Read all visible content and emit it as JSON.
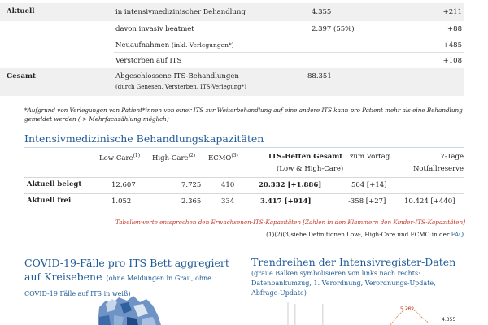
{
  "top_table": {
    "rows": [
      {
        "label": "Aktuell",
        "desc": "in intensivmedizinischer Behandlung",
        "value": "4.355",
        "change": "+211"
      },
      {
        "label": "",
        "desc": "davon invasiv beatmet",
        "value": "2.397  (55%)",
        "change": "+88"
      },
      {
        "label": "",
        "desc": "Neuaufnahmen",
        "desc_small": "(inkl. Verlegungen*)",
        "value": "",
        "change": "+485"
      },
      {
        "label": "",
        "desc": "Verstorben auf ITS",
        "value": "",
        "change": "+108"
      },
      {
        "label": "Gesamt",
        "desc": "Abgeschlossene ITS-Behandlungen",
        "desc_line2": "(durch Genesen, Versterben, ITS-Verlegung*)",
        "value": "88.351",
        "change": ""
      }
    ]
  },
  "footnote": "*Aufgrund von Verlegungen von Patient*innen von einer ITS zur Weiterbehandlung auf eine andere ITS kann pro Patient mehr als eine Behandlung gemeldet werden (-> Mehrfachzählung möglich)",
  "capacity": {
    "title": "Intensivmedizinische Behandlungskapazitäten",
    "headers": {
      "low": "Low-Care",
      "low_sup": "(1)",
      "high": "High-Care",
      "high_sup": "(2)",
      "ecmo": "ECMO",
      "ecmo_sup": "(3)",
      "its": "ITS-Betten Gesamt",
      "its_sub": "(Low & High-Care)",
      "vortag": "zum Vortag",
      "reserve": "7-Tage",
      "reserve_sub": "Notfallreserve"
    },
    "rows": [
      {
        "label": "Aktuell belegt",
        "low": "12.607",
        "high": "7.725",
        "ecmo": "410",
        "its": "20.332  [+1.886]",
        "vortag": "504  [+14]",
        "reserve": ""
      },
      {
        "label": "Aktuell frei",
        "low": "1.052",
        "high": "2.365",
        "ecmo": "334",
        "its": "3.417  [+914]",
        "vortag": "-358  [+27]",
        "reserve": "10.424  [+440]"
      }
    ],
    "note_red": "Tabellenwerte entsprechen den Erwachsenen-ITS-Kapazitäten [Zahlen in den Klammern den Kinder-ITS-Kapazitäten]",
    "note_def_prefix": "(1)(2)(3)siehe Definitionen Low-, High-Care und ECMO in der",
    "note_def_link": "FAQ"
  },
  "map_section": {
    "title": "COVID-19-Fälle pro ITS Bett aggregiert auf Kreisebene",
    "subtitle": "(ohne Meldungen in Grau, ohne COVID-19 Fälle auf ITS in weiß)"
  },
  "trend_section": {
    "title": "Trendreihen der Intensivregister-Daten",
    "subtitle": "(graue Balken symbolisieren von links nach rechts: Datenbankumzug, 1. Verordnung, Verordnungs-Update, Abfrage-Update)",
    "chart_labels": [
      "5.762",
      "4.355"
    ]
  },
  "colors": {
    "accent": "#1f5b96",
    "row_grey": "#f0f0f0",
    "red_note": "#c0392b"
  }
}
